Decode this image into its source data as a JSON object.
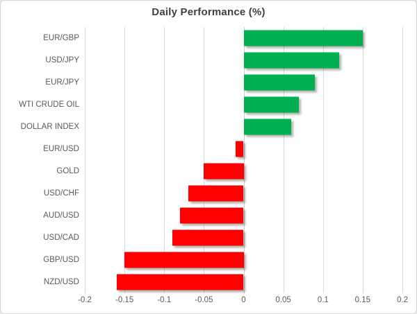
{
  "chart_data": {
    "type": "bar",
    "orientation": "horizontal",
    "title": "Daily Performance (%)",
    "categories": [
      "EUR/GBP",
      "USD/JPY",
      "EUR/JPY",
      "WTI CRUDE OIL",
      "DOLLAR INDEX",
      "EUR/USD",
      "GOLD",
      "USD/CHF",
      "AUD/USD",
      "USD/CAD",
      "GBP/USD",
      "NZD/USD"
    ],
    "values": [
      0.15,
      0.12,
      0.09,
      0.07,
      0.06,
      -0.01,
      -0.05,
      -0.07,
      -0.08,
      -0.09,
      -0.15,
      -0.16
    ],
    "xlabel": "",
    "ylabel": "",
    "xlim": [
      -0.2,
      0.2
    ],
    "x_ticks": [
      -0.2,
      -0.15,
      -0.1,
      -0.05,
      0,
      0.05,
      0.1,
      0.15,
      0.2
    ],
    "x_tick_labels": [
      "-0.2",
      "-0.15",
      "-0.1",
      "-0.05",
      "0",
      "0.05",
      "0.1",
      "0.15",
      "0.2"
    ],
    "grid": "vertical-on",
    "legend": "none",
    "colors": {
      "positive": "#00B050",
      "negative": "#FF0000",
      "gridline": "#D9D9D9",
      "axis_text": "#595959",
      "title_text": "#404040",
      "background": "#FFFFFF"
    }
  }
}
